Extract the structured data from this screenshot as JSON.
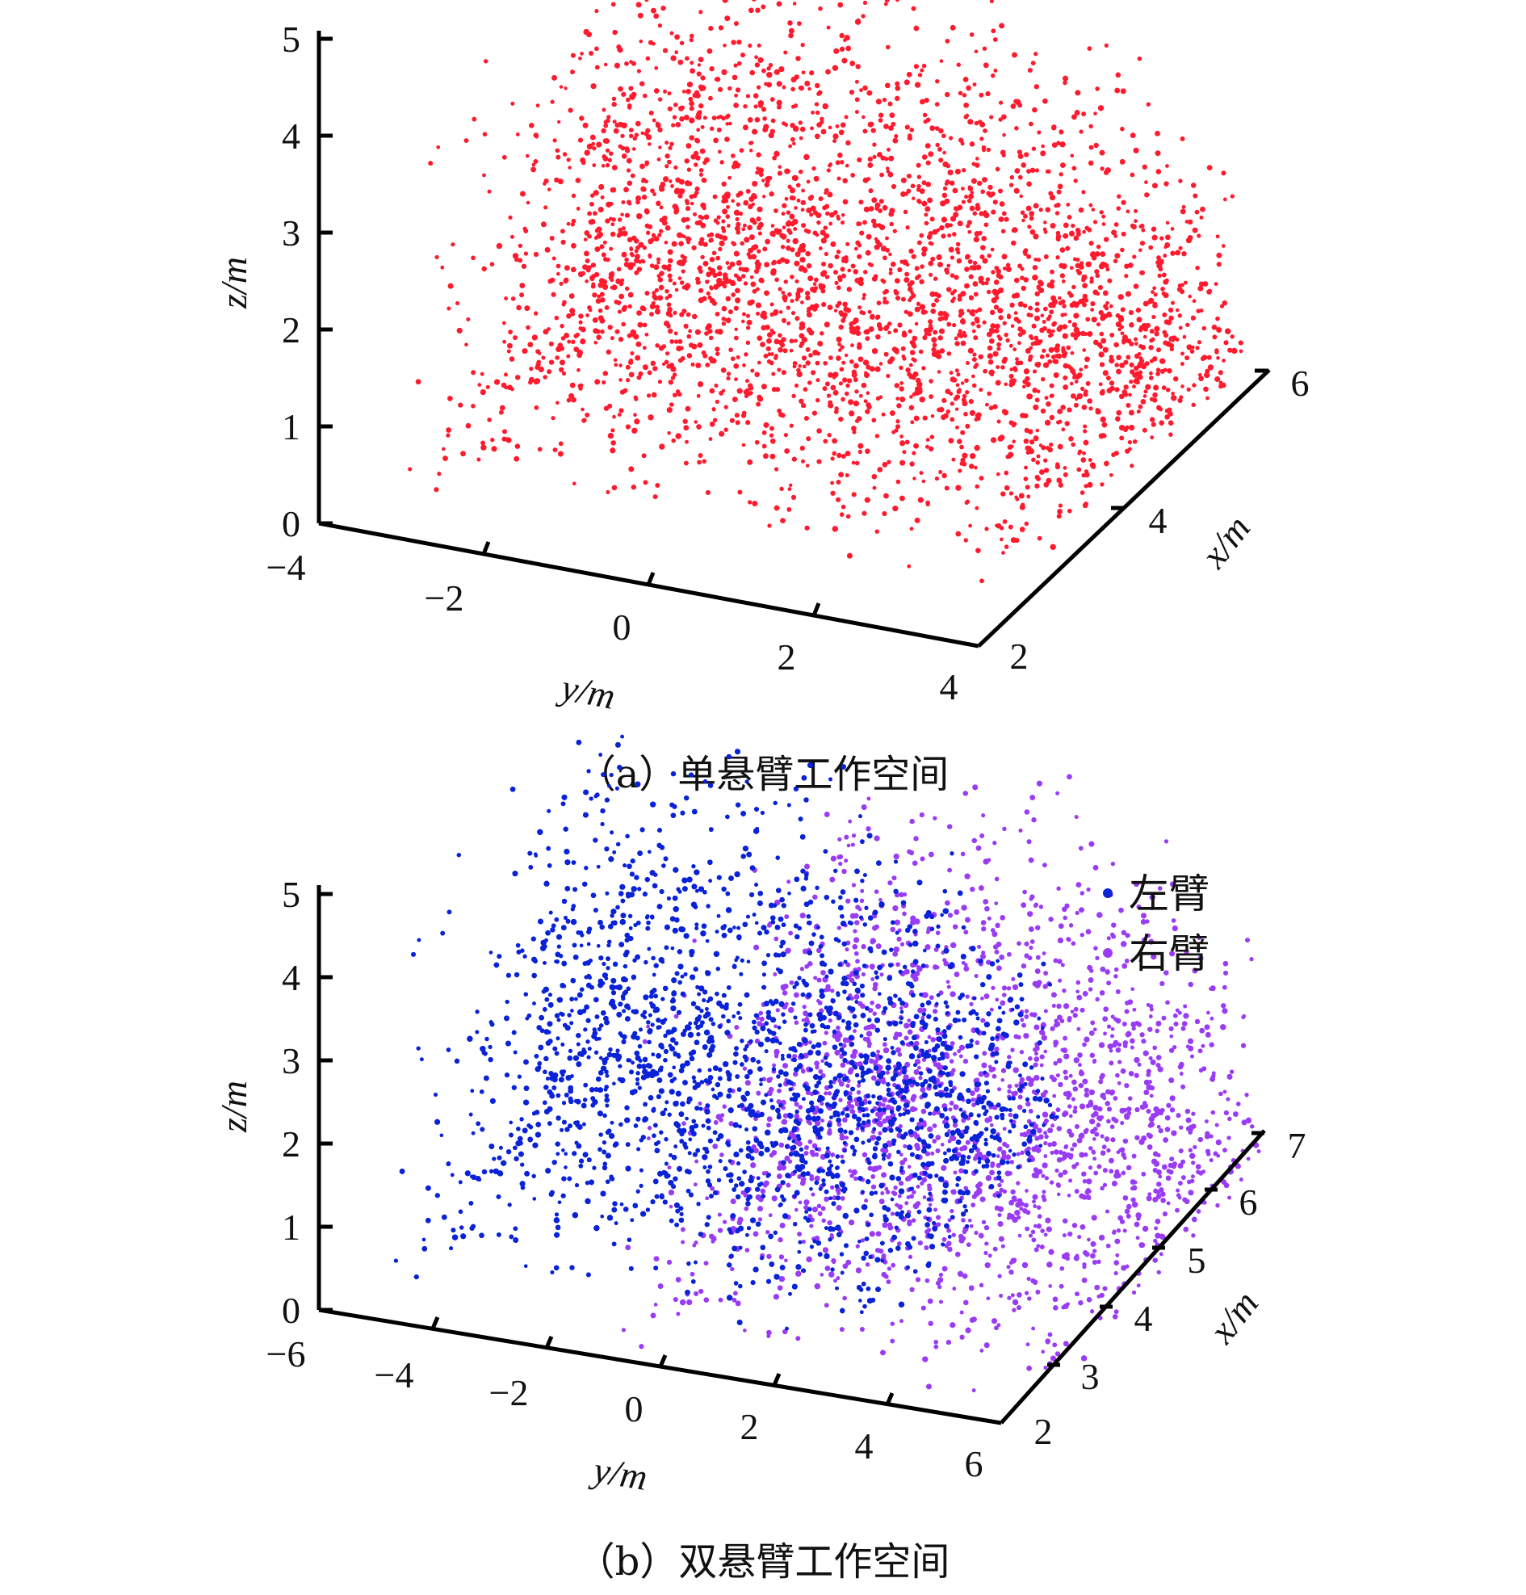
{
  "chart_data": [
    {
      "type": "scatter",
      "caption": "（a）单悬臂工作空间",
      "x_axis": {
        "label": "x/m",
        "range": [
          2,
          6
        ],
        "ticks": [
          "2",
          "4",
          "6"
        ]
      },
      "y_axis": {
        "label": "y/m",
        "range": [
          -4,
          4
        ],
        "ticks": [
          "−4",
          "−2",
          "0",
          "2",
          "4"
        ]
      },
      "z_axis": {
        "label": "z/m",
        "range": [
          0,
          5
        ],
        "ticks": [
          "0",
          "1",
          "2",
          "3",
          "4",
          "5"
        ]
      },
      "series": [
        {
          "color": "#ff1a2e",
          "point_count": 6000,
          "y_range": [
            -3.2,
            4.2
          ],
          "z_range": [
            0.4,
            5.0
          ],
          "x_range": [
            2.0,
            5.5
          ]
        }
      ]
    },
    {
      "type": "scatter",
      "caption": "（b）双悬臂工作空间",
      "x_axis": {
        "label": "x/m",
        "range": [
          2,
          7
        ],
        "ticks": [
          "2",
          "3",
          "4",
          "5",
          "6",
          "7"
        ]
      },
      "y_axis": {
        "label": "y/m",
        "range": [
          -6,
          6
        ],
        "ticks": [
          "−6",
          "−4",
          "−2",
          "0",
          "2",
          "4",
          "6"
        ]
      },
      "z_axis": {
        "label": "z/m",
        "range": [
          0,
          5
        ],
        "ticks": [
          "0",
          "1",
          "2",
          "3",
          "4",
          "5"
        ]
      },
      "legend": {
        "position": "top-right"
      },
      "series": [
        {
          "name": "左臂",
          "color": "#0a22d8",
          "point_count": 6500,
          "y_range": [
            -5.0,
            3.4
          ],
          "z_range": [
            0.4,
            5.4
          ],
          "x_range": [
            2.0,
            6.0
          ]
        },
        {
          "name": "右臂",
          "color": "#9a3cf5",
          "point_count": 6500,
          "y_range": [
            -1.0,
            6.5
          ],
          "z_range": [
            0.0,
            5.0
          ],
          "x_range": [
            2.0,
            6.5
          ]
        }
      ]
    }
  ]
}
